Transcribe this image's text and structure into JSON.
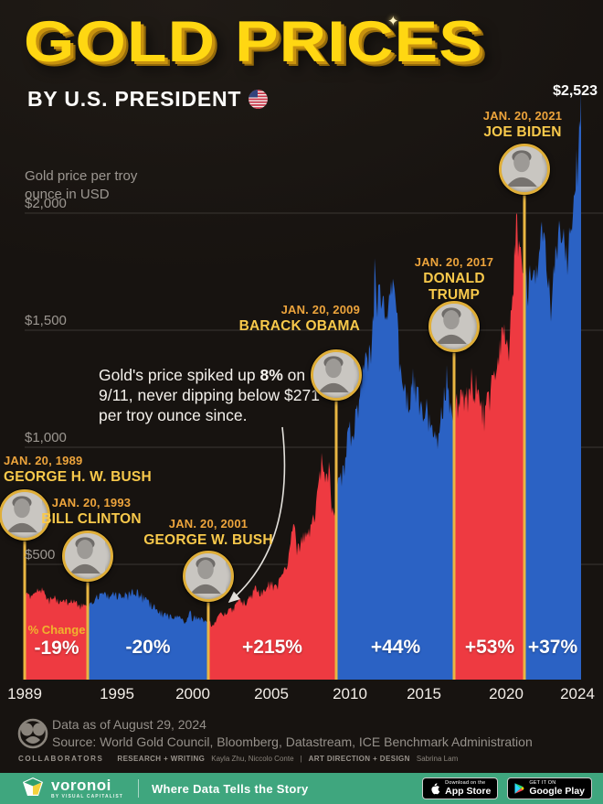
{
  "header": {
    "title": "GOLD PRICES",
    "subtitle": "BY U.S. PRESIDENT",
    "peak_price_label": "$2,523"
  },
  "colors": {
    "republican": "#ee3a41",
    "democrat": "#2b62c4",
    "gold_line": "#e9b642",
    "date_gold": "#eda43c",
    "name_gold": "#f8c94b",
    "title_gold": "#ffd712",
    "gridline": "#3b3733",
    "brand_green": "#3fa67e"
  },
  "chart_data": {
    "type": "area",
    "title": "Gold price per troy ounce in USD, by U.S. president, 1989-2024",
    "axis_note": "Gold price per troy ounce in USD",
    "pct_caption": "% Change",
    "x_range": [
      1989.05,
      2024.66
    ],
    "y_range": [
      0,
      2600
    ],
    "grid": true,
    "end_value_label": "$2,523",
    "y_ticks": [
      {
        "label": "$500",
        "value": 500
      },
      {
        "label": "$1,000",
        "value": 1000
      },
      {
        "label": "$1,500",
        "value": 1500
      },
      {
        "label": "$2,000",
        "value": 2000
      }
    ],
    "x_ticks": [
      {
        "label": "1989",
        "year": 1989.05
      },
      {
        "label": "1995",
        "year": 1995
      },
      {
        "label": "2000",
        "year": 2000
      },
      {
        "label": "2005",
        "year": 2005
      },
      {
        "label": "2010",
        "year": 2010
      },
      {
        "label": "2015",
        "year": 2015
      },
      {
        "label": "2020",
        "year": 2020
      },
      {
        "label": "2024",
        "year": 2024.45
      }
    ],
    "segments": [
      {
        "date_label": "JAN. 20, 1989",
        "name": "GEORGE H. W. BUSH",
        "party": "R",
        "start_year": 1989.05,
        "pct_change": "-19%"
      },
      {
        "date_label": "JAN. 20, 1993",
        "name": "BILL CLINTON",
        "party": "D",
        "start_year": 1993.05,
        "pct_change": "-20%"
      },
      {
        "date_label": "JAN. 20, 2001",
        "name": "GEORGE W. BUSH",
        "party": "R",
        "start_year": 2001.05,
        "pct_change": "+215%"
      },
      {
        "date_label": "JAN. 20, 2009",
        "name": "BARACK OBAMA",
        "party": "D",
        "start_year": 2009.05,
        "pct_change": "+44%"
      },
      {
        "date_label": "JAN. 20, 2017",
        "name": "DONALD TRUMP",
        "party": "R",
        "start_year": 2017.05,
        "pct_change": "+53%"
      },
      {
        "date_label": "JAN. 20, 2021",
        "name": "JOE BIDEN",
        "party": "D",
        "start_year": 2021.05,
        "pct_change": "+37%"
      }
    ],
    "series": [
      {
        "name": "Gold price (USD per troy ounce)",
        "points": [
          [
            1989.05,
            404
          ],
          [
            1989.5,
            368
          ],
          [
            1990.1,
            412
          ],
          [
            1990.5,
            360
          ],
          [
            1991.0,
            370
          ],
          [
            1991.5,
            358
          ],
          [
            1992.0,
            352
          ],
          [
            1992.6,
            338
          ],
          [
            1993.05,
            329
          ],
          [
            1993.6,
            372
          ],
          [
            1994.0,
            385
          ],
          [
            1994.7,
            384
          ],
          [
            1995.2,
            378
          ],
          [
            1995.7,
            385
          ],
          [
            1996.1,
            405
          ],
          [
            1996.6,
            383
          ],
          [
            1997.1,
            348
          ],
          [
            1997.6,
            322
          ],
          [
            1998.1,
            295
          ],
          [
            1998.6,
            288
          ],
          [
            1999.1,
            285
          ],
          [
            1999.55,
            255
          ],
          [
            1999.75,
            318
          ],
          [
            2000.0,
            285
          ],
          [
            2000.5,
            276
          ],
          [
            2001.05,
            264
          ],
          [
            2001.45,
            258
          ],
          [
            2001.72,
            289
          ],
          [
            2002.0,
            298
          ],
          [
            2002.5,
            318
          ],
          [
            2003.0,
            356
          ],
          [
            2003.5,
            352
          ],
          [
            2004.0,
            412
          ],
          [
            2004.4,
            392
          ],
          [
            2004.95,
            438
          ],
          [
            2005.4,
            428
          ],
          [
            2005.9,
            495
          ],
          [
            2006.1,
            555
          ],
          [
            2006.38,
            715
          ],
          [
            2006.6,
            590
          ],
          [
            2006.9,
            635
          ],
          [
            2007.3,
            660
          ],
          [
            2007.7,
            730
          ],
          [
            2008.2,
            1005
          ],
          [
            2008.45,
            880
          ],
          [
            2008.6,
            950
          ],
          [
            2008.85,
            725
          ],
          [
            2009.05,
            832
          ],
          [
            2009.3,
            900
          ],
          [
            2009.6,
            950
          ],
          [
            2009.9,
            1120
          ],
          [
            2010.2,
            1110
          ],
          [
            2010.5,
            1205
          ],
          [
            2010.9,
            1390
          ],
          [
            2011.2,
            1420
          ],
          [
            2011.55,
            1560
          ],
          [
            2011.68,
            1890
          ],
          [
            2011.78,
            1650
          ],
          [
            2011.9,
            1750
          ],
          [
            2012.2,
            1650
          ],
          [
            2012.5,
            1580
          ],
          [
            2012.8,
            1770
          ],
          [
            2013.0,
            1675
          ],
          [
            2013.3,
            1560
          ],
          [
            2013.35,
            1380
          ],
          [
            2013.6,
            1290
          ],
          [
            2013.95,
            1220
          ],
          [
            2014.2,
            1335
          ],
          [
            2014.6,
            1290
          ],
          [
            2014.95,
            1180
          ],
          [
            2015.2,
            1215
          ],
          [
            2015.6,
            1095
          ],
          [
            2015.95,
            1062
          ],
          [
            2016.3,
            1240
          ],
          [
            2016.55,
            1360
          ],
          [
            2016.9,
            1135
          ],
          [
            2017.05,
            1200
          ],
          [
            2017.4,
            1265
          ],
          [
            2017.7,
            1240
          ],
          [
            2018.1,
            1345
          ],
          [
            2018.4,
            1300
          ],
          [
            2018.75,
            1190
          ],
          [
            2019.1,
            1290
          ],
          [
            2019.45,
            1330
          ],
          [
            2019.7,
            1510
          ],
          [
            2020.0,
            1560
          ],
          [
            2020.2,
            1480
          ],
          [
            2020.6,
            2065
          ],
          [
            2020.85,
            1865
          ],
          [
            2021.05,
            1839
          ],
          [
            2021.25,
            1705
          ],
          [
            2021.45,
            1820
          ],
          [
            2021.7,
            1770
          ],
          [
            2021.95,
            1800
          ],
          [
            2022.2,
            2040
          ],
          [
            2022.5,
            1815
          ],
          [
            2022.78,
            1630
          ],
          [
            2023.0,
            1870
          ],
          [
            2023.35,
            2020
          ],
          [
            2023.6,
            1930
          ],
          [
            2023.78,
            1850
          ],
          [
            2023.95,
            2050
          ],
          [
            2024.15,
            2035
          ],
          [
            2024.3,
            2180
          ],
          [
            2024.45,
            2340
          ],
          [
            2024.55,
            2420
          ],
          [
            2024.66,
            2523
          ]
        ]
      }
    ],
    "legend_position": "none"
  },
  "annotation": {
    "pre": "Gold's price spiked up ",
    "bold": "8%",
    "post": " on 9/11, never dipping below $271 per troy ounce since."
  },
  "icons": {
    "sparkle": "✦"
  },
  "footer": {
    "data_as_of": "Data as of August 29, 2024",
    "source": "Source: World Gold Council, Bloomberg, Datastream, ICE Benchmark Administration",
    "collaborators_label": "COLLABORATORS",
    "research_label": "RESEARCH + WRITING",
    "research_names": "Kayla Zhu, Niccolo Conte",
    "separator": "|",
    "art_label": "ART DIRECTION + DESIGN",
    "art_name": "Sabrina Lam"
  },
  "brandbar": {
    "brand": "voronoi",
    "brand_sub": "BY VISUAL CAPITALIST",
    "tagline": "Where Data Tells the Story",
    "appstore_top": "Download on the",
    "appstore_bottom": "App Store",
    "gplay_top": "GET IT ON",
    "gplay_bottom": "Google Play"
  }
}
